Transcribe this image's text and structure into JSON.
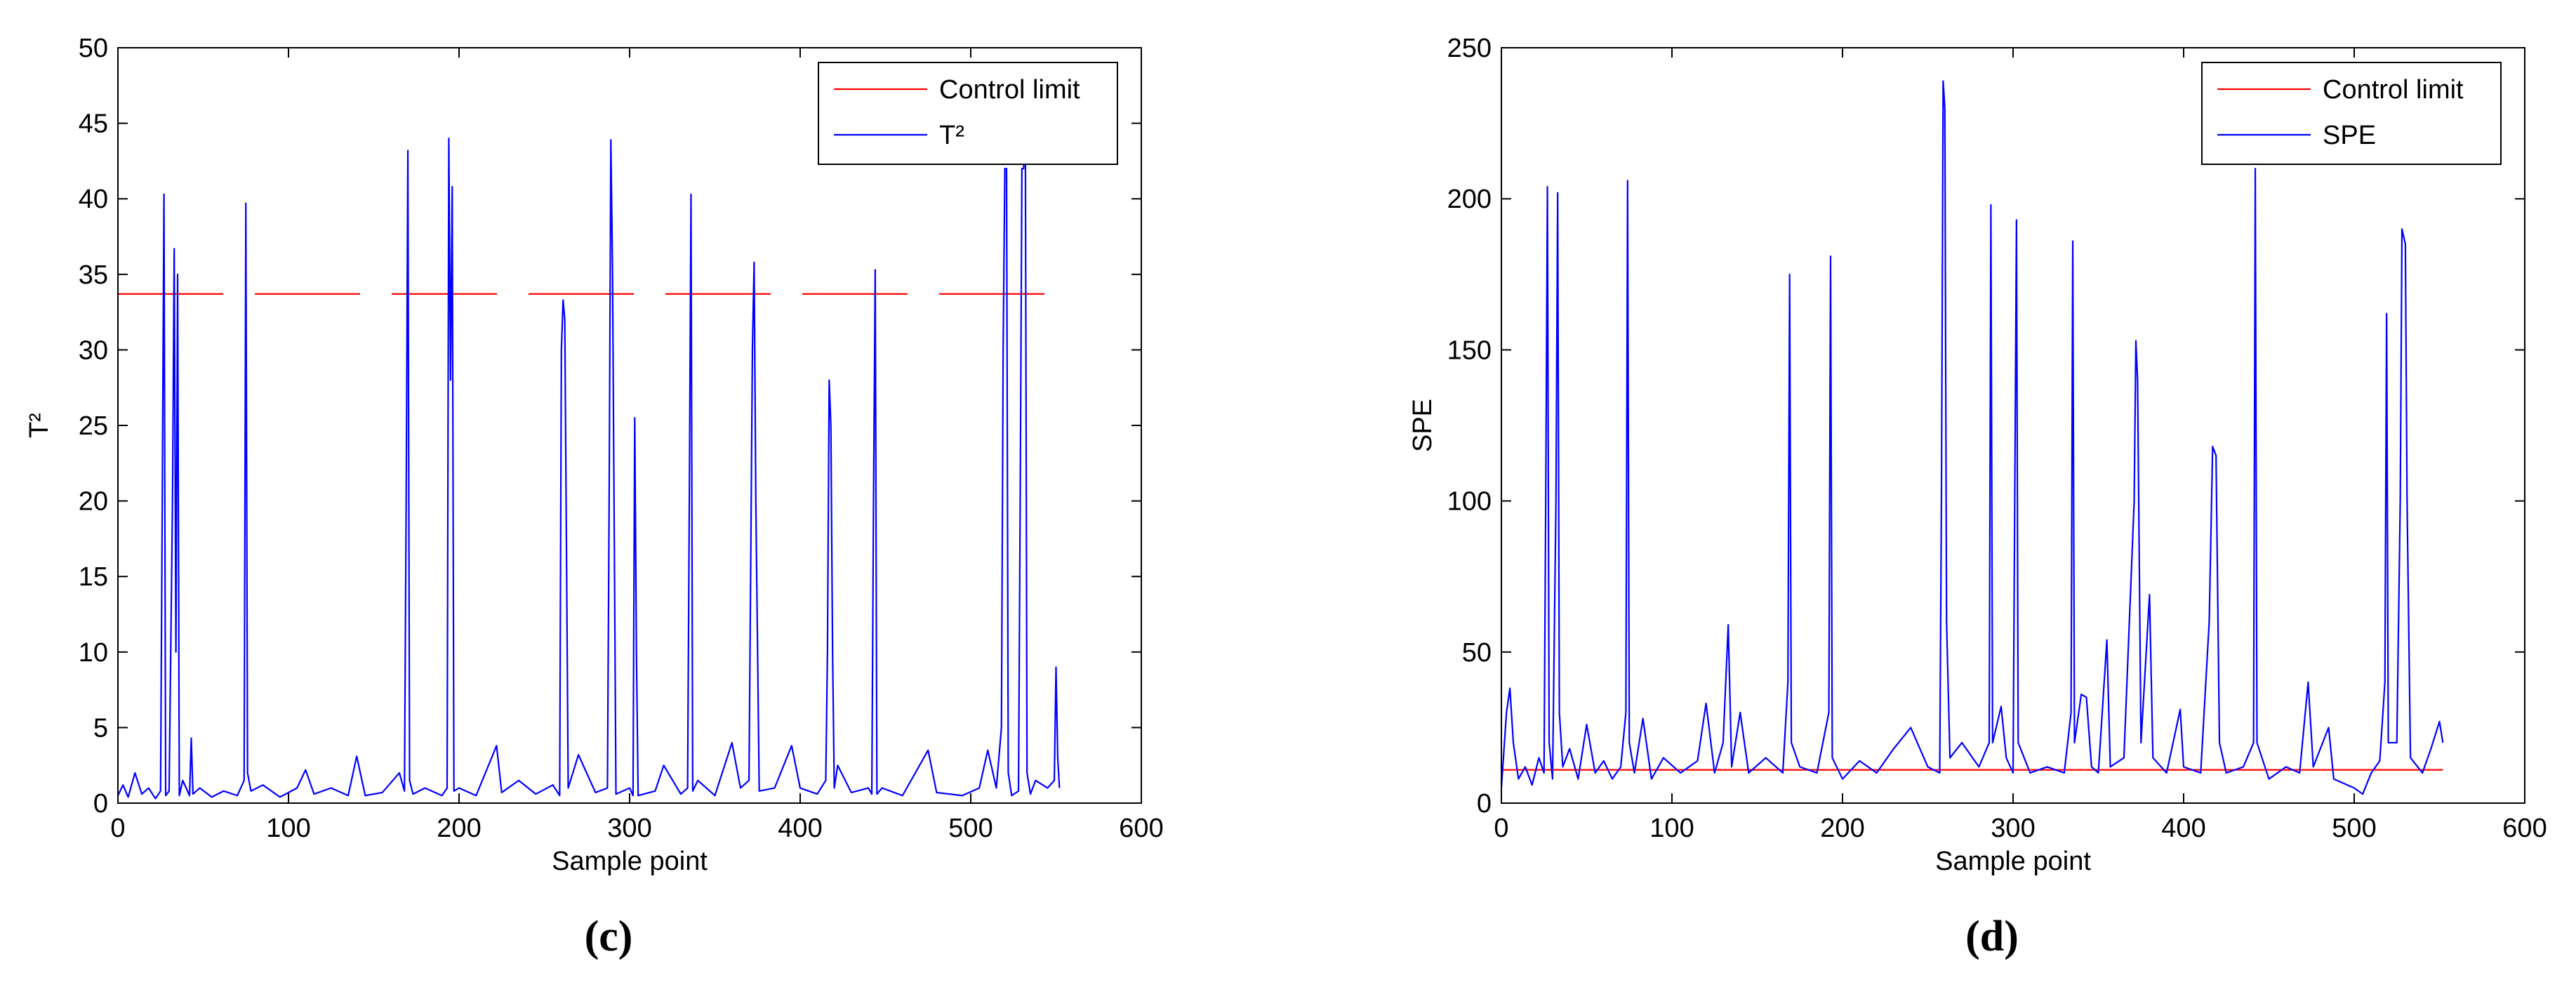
{
  "chart_data": [
    {
      "type": "line",
      "caption": "(c)",
      "xlabel": "Sample point",
      "ylabel": "T²",
      "xlim": [
        0,
        600
      ],
      "xticks": [
        0,
        100,
        200,
        300,
        400,
        500,
        600
      ],
      "ylim": [
        0,
        50
      ],
      "yticks": [
        0,
        5,
        10,
        15,
        20,
        25,
        30,
        35,
        40,
        45,
        50
      ],
      "legend": "upper right",
      "series": [
        {
          "name": "Control limit",
          "color": "#ff0000",
          "dashed": true,
          "x": [
            0,
            552
          ],
          "values": [
            33.7,
            33.7
          ]
        },
        {
          "name": "T²",
          "color": "#0000ff",
          "x": [
            0,
            3,
            6,
            10,
            14,
            18,
            22,
            25,
            26,
            27,
            28,
            30,
            32,
            33,
            34,
            35,
            36,
            38,
            42,
            43,
            44,
            48,
            55,
            62,
            70,
            74,
            75,
            76,
            78,
            85,
            95,
            105,
            110,
            115,
            125,
            135,
            140,
            145,
            155,
            165,
            168,
            169,
            170,
            171,
            173,
            180,
            190,
            193,
            194,
            195,
            196,
            197,
            200,
            210,
            222,
            225,
            235,
            245,
            255,
            259,
            260,
            261,
            262,
            264,
            270,
            280,
            287,
            288,
            289,
            290,
            292,
            300,
            302,
            303,
            304,
            305,
            315,
            320,
            330,
            334,
            335,
            336,
            337,
            340,
            350,
            360,
            365,
            370,
            372,
            373,
            374,
            376,
            385,
            395,
            400,
            410,
            415,
            416,
            417,
            418,
            419,
            420,
            422,
            430,
            440,
            442,
            443,
            444,
            445,
            448,
            460,
            475,
            480,
            495,
            505,
            510,
            515,
            518,
            519,
            520,
            521,
            522,
            524,
            528,
            529,
            530,
            531,
            532,
            533,
            535,
            538,
            545,
            549,
            550,
            551,
            552
          ],
          "values": [
            0.5,
            1.2,
            0.4,
            2.0,
            0.6,
            1.0,
            0.3,
            0.8,
            20,
            40.3,
            0.5,
            0.8,
            20,
            36.7,
            10,
            35,
            0.5,
            1.5,
            0.5,
            4.3,
            0.6,
            1.0,
            0.4,
            0.8,
            0.5,
            1.5,
            39.7,
            2,
            0.8,
            1.2,
            0.4,
            1.0,
            2.2,
            0.6,
            1.0,
            0.5,
            3.1,
            0.5,
            0.7,
            2.0,
            0.8,
            20,
            43.2,
            1.5,
            0.6,
            1.0,
            0.5,
            1.0,
            44.0,
            28,
            40.8,
            0.8,
            1.0,
            0.5,
            3.8,
            0.7,
            1.5,
            0.6,
            1.2,
            0.5,
            30,
            33.3,
            32,
            1,
            3.2,
            0.7,
            1.0,
            20,
            43.9,
            35,
            0.6,
            1.0,
            0.5,
            25.5,
            10,
            0.5,
            0.8,
            2.5,
            0.6,
            1.0,
            20,
            40.3,
            0.8,
            1.5,
            0.5,
            4.0,
            1.0,
            1.5,
            30,
            35.8,
            20,
            0.8,
            1.0,
            3.8,
            1.0,
            0.6,
            1.5,
            10,
            28,
            25,
            10,
            1,
            2.5,
            0.7,
            1.0,
            0.6,
            20,
            35.3,
            0.6,
            1.0,
            0.5,
            3.5,
            0.7,
            0.5,
            1.0,
            3.5,
            1.0,
            5.0,
            30,
            42,
            42,
            2,
            0.5,
            0.8,
            20,
            42,
            42,
            45,
            2,
            0.6,
            1.5,
            1.0,
            1.5,
            9.0,
            3,
            1
          ]
        }
      ]
    },
    {
      "type": "line",
      "caption": "(d)",
      "xlabel": "Sample point",
      "ylabel": "SPE",
      "xlim": [
        0,
        600
      ],
      "xticks": [
        0,
        100,
        200,
        300,
        400,
        500,
        600
      ],
      "ylim": [
        0,
        250
      ],
      "yticks": [
        0,
        50,
        100,
        150,
        200,
        250
      ],
      "legend": "upper right",
      "series": [
        {
          "name": "Control limit",
          "color": "#ff0000",
          "dashed": false,
          "x": [
            0,
            552
          ],
          "values": [
            11,
            11
          ]
        },
        {
          "name": "SPE",
          "color": "#0000ff",
          "x": [
            0,
            3,
            5,
            7,
            10,
            14,
            18,
            22,
            25,
            26,
            27,
            28,
            30,
            32,
            33,
            34,
            36,
            40,
            45,
            50,
            55,
            60,
            65,
            70,
            73,
            74,
            75,
            78,
            83,
            88,
            95,
            105,
            115,
            120,
            125,
            130,
            133,
            135,
            140,
            145,
            155,
            165,
            168,
            169,
            170,
            175,
            185,
            192,
            193,
            194,
            200,
            210,
            220,
            230,
            240,
            250,
            257,
            258,
            259,
            260,
            261,
            263,
            270,
            280,
            286,
            287,
            288,
            293,
            296,
            300,
            302,
            303,
            310,
            320,
            330,
            334,
            335,
            336,
            340,
            343,
            346,
            350,
            355,
            357,
            365,
            371,
            372,
            373,
            375,
            380,
            382,
            390,
            398,
            400,
            410,
            415,
            417,
            419,
            421,
            425,
            435,
            441,
            442,
            443,
            450,
            460,
            468,
            473,
            476,
            485,
            488,
            500,
            505,
            510,
            515,
            518,
            519,
            520,
            525,
            527,
            528,
            530,
            531,
            533,
            540,
            545,
            550,
            552
          ],
          "values": [
            5,
            30,
            38,
            20,
            8,
            12,
            6,
            15,
            10,
            100,
            204,
            20,
            8,
            100,
            202,
            30,
            12,
            18,
            8,
            26,
            10,
            14,
            8,
            12,
            30,
            206,
            20,
            10,
            28,
            8,
            15,
            10,
            14,
            33,
            10,
            20,
            59,
            12,
            30,
            10,
            15,
            10,
            40,
            175,
            20,
            12,
            10,
            30,
            181,
            15,
            8,
            14,
            10,
            18,
            25,
            12,
            10,
            100,
            239,
            230,
            60,
            15,
            20,
            12,
            20,
            198,
            20,
            32,
            15,
            10,
            193,
            20,
            10,
            12,
            10,
            30,
            186,
            20,
            36,
            35,
            12,
            10,
            54,
            12,
            15,
            100,
            153,
            140,
            20,
            69,
            15,
            10,
            31,
            12,
            10,
            60,
            118,
            115,
            20,
            10,
            12,
            20,
            210,
            20,
            8,
            12,
            10,
            40,
            12,
            25,
            8,
            5,
            3,
            10,
            14,
            40,
            162,
            20,
            20,
            100,
            190,
            185,
            100,
            15,
            10,
            18,
            27,
            20
          ]
        }
      ]
    }
  ]
}
